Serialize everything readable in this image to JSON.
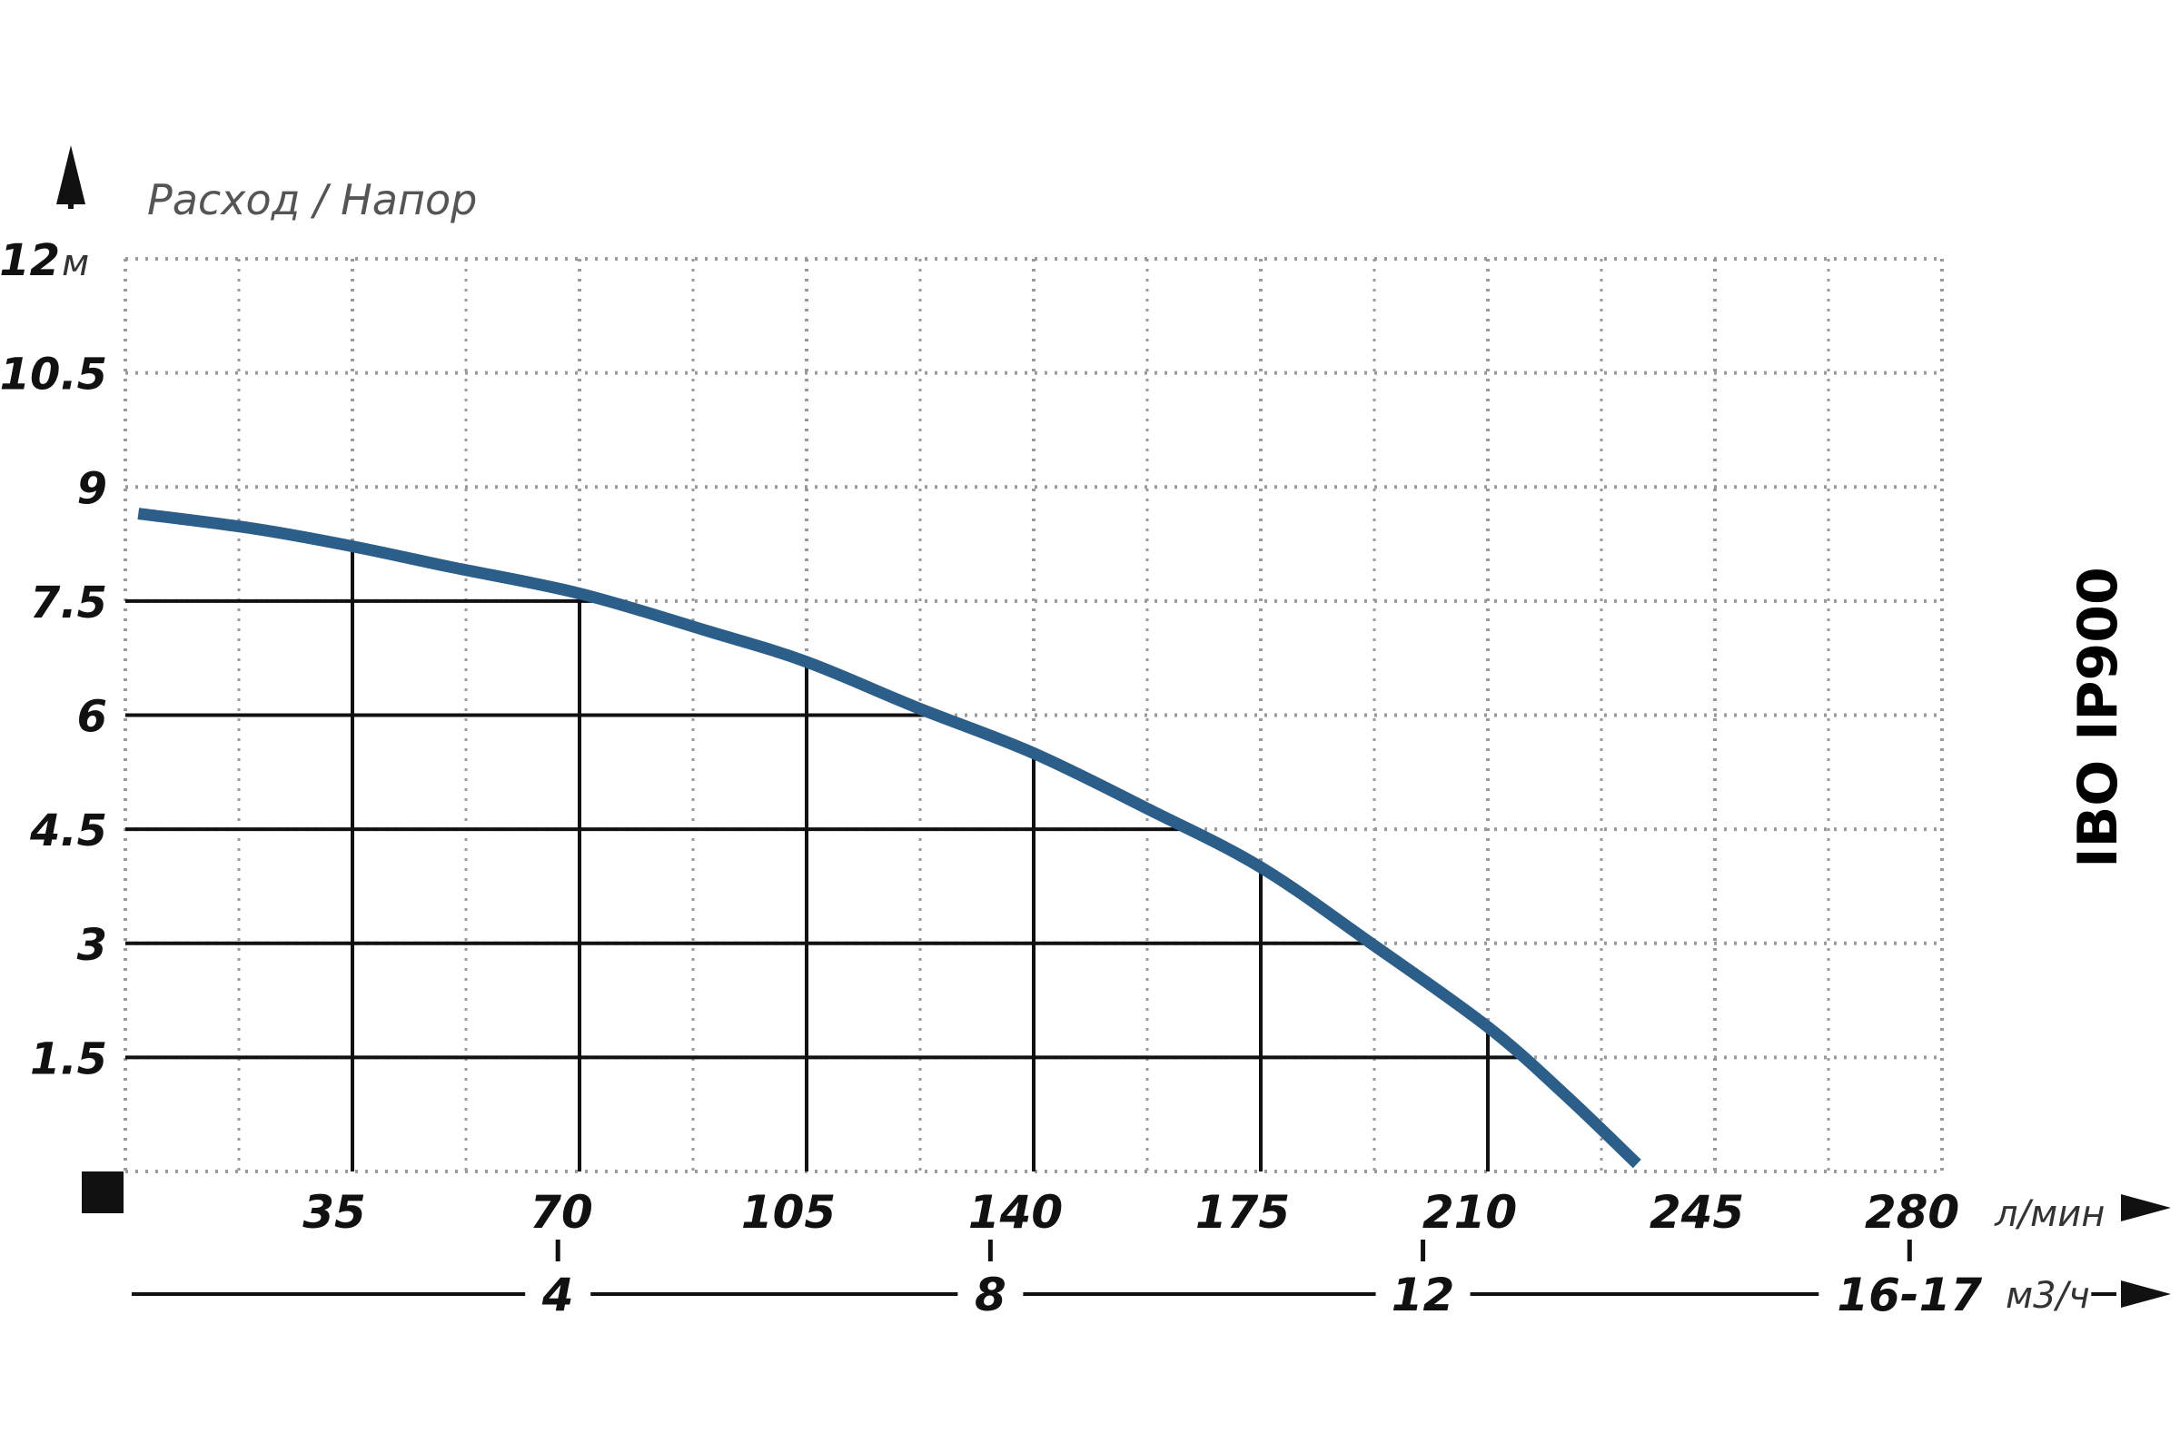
{
  "chart_data": {
    "type": "line",
    "title": "",
    "ylabel": "Расход / Напор",
    "y_unit": "м",
    "x_unit": "л/мин",
    "x2_unit": "м3/ч",
    "ylim": [
      0,
      12
    ],
    "xlim": [
      0,
      280
    ],
    "y_ticks": [
      "12",
      "10.5",
      "9",
      "7.5",
      "6",
      "4.5",
      "3",
      "1.5"
    ],
    "y_tick_values": [
      12,
      10.5,
      9,
      7.5,
      6,
      4.5,
      3,
      1.5
    ],
    "x_ticks": [
      "35",
      "70",
      "105",
      "140",
      "175",
      "210",
      "245",
      "280"
    ],
    "x_tick_values": [
      35,
      70,
      105,
      140,
      175,
      210,
      245,
      280
    ],
    "x2_ticks": [
      "4",
      "8",
      "12",
      "16-17"
    ],
    "x2_tick_values": [
      4,
      8,
      12,
      16.5
    ],
    "grid": true,
    "model": "IBO IP900",
    "curve_color": "#2b5f8a",
    "series": [
      {
        "name": "",
        "x": [
          2,
          20,
          35,
          50,
          70,
          90,
          105,
          122,
          140,
          158,
          175,
          192,
          210,
          222,
          233
        ],
        "y": [
          8.65,
          8.45,
          8.22,
          7.95,
          7.6,
          7.1,
          6.7,
          6.1,
          5.5,
          4.75,
          4.0,
          3.0,
          1.9,
          1.0,
          0.1
        ]
      }
    ]
  }
}
